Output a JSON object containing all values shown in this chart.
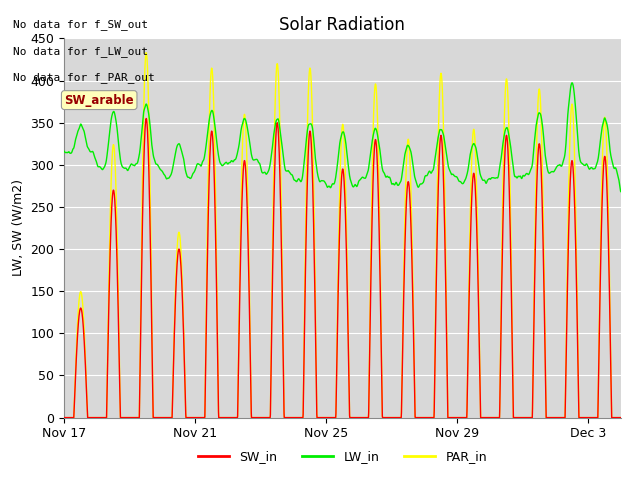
{
  "title": "Solar Radiation",
  "ylabel": "LW, SW (W/m2)",
  "ylim": [
    0,
    450
  ],
  "yticks": [
    0,
    50,
    100,
    150,
    200,
    250,
    300,
    350,
    400,
    450
  ],
  "background_color": "#ffffff",
  "plot_bg_color": "#d8d8d8",
  "grid_color": "#ffffff",
  "annotations": [
    "No data for f_SW_out",
    "No data for f_LW_out",
    "No data for f_PAR_out"
  ],
  "tooltip_text": "SW_arable",
  "legend_items": [
    {
      "label": "SW_in",
      "color": "#ff0000"
    },
    {
      "label": "LW_in",
      "color": "#00ee00"
    },
    {
      "label": "PAR_in",
      "color": "#ffff00"
    }
  ],
  "x_tick_labels": [
    "Nov 17",
    "Nov 21",
    "Nov 25",
    "Nov 29",
    "Dec 3"
  ],
  "x_tick_positions": [
    0,
    4,
    8,
    12,
    16
  ],
  "line_width": 1.0,
  "days": 17
}
